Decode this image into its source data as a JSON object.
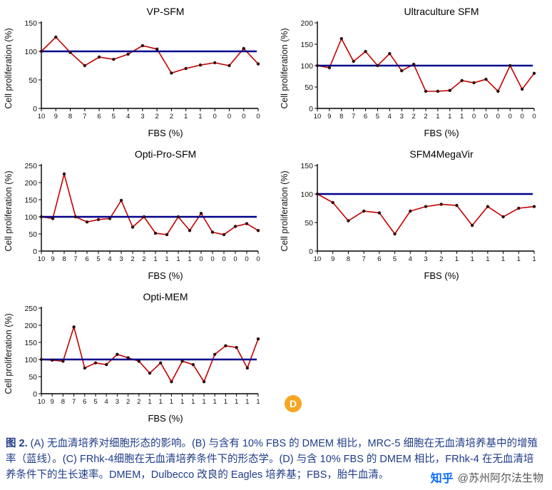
{
  "chart_data": [
    {
      "type": "line",
      "title": "VP-SFM",
      "xlabel": "FBS (%)",
      "ylabel": "Cell proliferation (%)",
      "ylim": [
        0,
        150
      ],
      "ytick_step": 50,
      "reference_line_y": 100,
      "legend": "blue line = 100% reference (10% FBS DMEM); red line = cell proliferation",
      "categories": [
        "10",
        "9",
        "8",
        "7",
        "6",
        "5",
        "4",
        "3",
        "2",
        "2",
        "1",
        "1",
        "0",
        "0",
        "0",
        "0"
      ],
      "values": [
        100,
        125,
        98,
        75,
        90,
        86,
        95,
        110,
        104,
        62,
        70,
        76,
        80,
        75,
        105,
        78
      ]
    },
    {
      "type": "line",
      "title": "Ultraculture SFM",
      "xlabel": "FBS (%)",
      "ylabel": "Cell proliferation (%)",
      "ylim": [
        0,
        200
      ],
      "ytick_step": 50,
      "reference_line_y": 100,
      "legend": "blue line = 100% reference; red line = cell proliferation",
      "categories": [
        "10",
        "9",
        "8",
        "7",
        "6",
        "5",
        "4",
        "3",
        "2",
        "2",
        "1",
        "1",
        "1",
        "0",
        "0",
        "0",
        "0",
        "0",
        "0"
      ],
      "values": [
        100,
        95,
        163,
        110,
        133,
        100,
        128,
        88,
        103,
        40,
        40,
        42,
        65,
        60,
        68,
        40,
        100,
        45,
        82
      ]
    },
    {
      "type": "line",
      "title": "Opti-Pro-SFM",
      "xlabel": "FBS (%)",
      "ylabel": "Cell proliferation (%)",
      "ylim": [
        0,
        250
      ],
      "ytick_step": 50,
      "reference_line_y": 100,
      "legend": "blue line = 100% reference; red line = cell proliferation",
      "categories": [
        "10",
        "9",
        "8",
        "7",
        "6",
        "5",
        "4",
        "3",
        "2",
        "2",
        "1",
        "1",
        "1",
        "1",
        "0",
        "0",
        "0",
        "0",
        "0",
        "0"
      ],
      "values": [
        100,
        95,
        225,
        100,
        85,
        92,
        95,
        148,
        70,
        100,
        52,
        48,
        100,
        60,
        110,
        55,
        48,
        72,
        80,
        60
      ]
    },
    {
      "type": "line",
      "title": "SFM4MegaVir",
      "xlabel": "FBS (%)",
      "ylabel": "Cell proliferation (%)",
      "ylim": [
        0,
        150
      ],
      "ytick_step": 50,
      "reference_line_y": 100,
      "legend": "blue line = 100% reference; red line = cell proliferation",
      "categories": [
        "10",
        "9",
        "8",
        "7",
        "6",
        "5",
        "4",
        "3",
        "2",
        "1",
        "1",
        "1",
        "1",
        "1",
        "1"
      ],
      "values": [
        100,
        85,
        53,
        70,
        67,
        30,
        70,
        78,
        82,
        80,
        45,
        78,
        60,
        75,
        78
      ]
    },
    {
      "type": "line",
      "title": "Opti-MEM",
      "xlabel": "FBS (%)",
      "ylabel": "Cell proliferation (%)",
      "ylim": [
        0,
        250
      ],
      "ytick_step": 50,
      "reference_line_y": 100,
      "legend": "blue line = 100% reference; red line = cell proliferation",
      "categories": [
        "10",
        "9",
        "8",
        "7",
        "6",
        "5",
        "4",
        "3",
        "2",
        "2",
        "1",
        "1",
        "1",
        "1",
        "1",
        "1",
        "1",
        "1",
        "1",
        "1",
        "1"
      ],
      "values": [
        100,
        98,
        95,
        195,
        75,
        90,
        85,
        115,
        105,
        95,
        60,
        90,
        35,
        95,
        85,
        35,
        115,
        140,
        135,
        75,
        160
      ]
    }
  ],
  "colors": {
    "reference_line": "#00008B",
    "series_line": "#c40000",
    "marker": "#330a0a",
    "badge_background": "#f5a623",
    "badge_text": "#ffffff",
    "caption_text": "#1f3c88",
    "watermark_brand": "#0b6cff",
    "watermark_handle": "#555555"
  },
  "badge": {
    "label": "D"
  },
  "caption": {
    "label": "图 2.",
    "text": "(A) 无血清培养对细胞形态的影响。(B) 与含有 10% FBS 的 DMEM 相比，MRC-5 细胞在无血清培养基中的增殖率（蓝线）。(C) FRhk-4细胞在无血清培养条件下的形态学。(D) 与含 10% FBS 的 DMEM 相比，FRhk-4 在无血清培养条件下的生长速率。DMEM，Dulbecco 改良的 Eagles 培养基；FBS，胎牛血清。"
  },
  "watermark": {
    "brand": "知乎",
    "handle": "@苏州阿尔法生物"
  }
}
